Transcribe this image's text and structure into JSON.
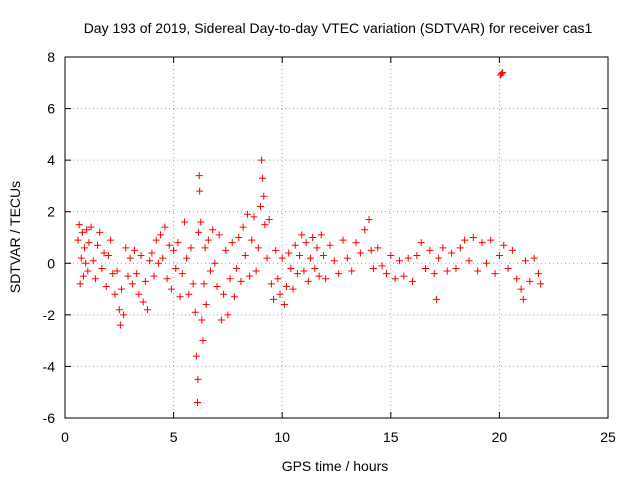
{
  "chart_data": {
    "type": "scatter",
    "title": "Day 193 of 2019, Sidereal Day-to-day VTEC variation (SDTVAR) for receiver cas1",
    "xlabel": "GPS time / hours",
    "ylabel": "SDTVAR / TECUs",
    "xlim": [
      0,
      25
    ],
    "ylim": [
      -6,
      8
    ],
    "xticks": [
      "0",
      "5",
      "10",
      "15",
      "20",
      "25"
    ],
    "yticks": [
      "-6",
      "-4",
      "-2",
      "0",
      "2",
      "4",
      "6",
      "8"
    ],
    "grid": true,
    "marker": "+",
    "series_color": "#ff0000",
    "series": [
      {
        "name": "SDTVAR",
        "points": [
          [
            0.6,
            0.9
          ],
          [
            0.65,
            1.5
          ],
          [
            0.7,
            -0.8
          ],
          [
            0.75,
            0.2
          ],
          [
            0.8,
            1.2
          ],
          [
            0.85,
            -0.5
          ],
          [
            0.9,
            0.6
          ],
          [
            0.95,
            0.0
          ],
          [
            1.0,
            1.3
          ],
          [
            1.05,
            -0.3
          ],
          [
            1.1,
            0.8
          ],
          [
            1.2,
            1.4
          ],
          [
            1.3,
            0.1
          ],
          [
            1.4,
            -0.6
          ],
          [
            1.5,
            0.7
          ],
          [
            1.6,
            1.2
          ],
          [
            1.7,
            -0.2
          ],
          [
            1.8,
            0.4
          ],
          [
            1.9,
            -0.9
          ],
          [
            2.0,
            0.3
          ],
          [
            2.1,
            0.9
          ],
          [
            2.2,
            -0.4
          ],
          [
            2.3,
            -1.2
          ],
          [
            2.4,
            -0.3
          ],
          [
            2.5,
            -1.8
          ],
          [
            2.55,
            -2.4
          ],
          [
            2.6,
            -1.0
          ],
          [
            2.7,
            -2.0
          ],
          [
            2.8,
            0.6
          ],
          [
            2.9,
            -0.5
          ],
          [
            3.0,
            0.2
          ],
          [
            3.1,
            -0.8
          ],
          [
            3.2,
            0.5
          ],
          [
            3.3,
            -0.4
          ],
          [
            3.4,
            -1.2
          ],
          [
            3.5,
            0.3
          ],
          [
            3.6,
            -1.5
          ],
          [
            3.7,
            -0.7
          ],
          [
            3.8,
            -1.8
          ],
          [
            3.9,
            0.1
          ],
          [
            4.0,
            0.4
          ],
          [
            4.1,
            -0.5
          ],
          [
            4.2,
            0.9
          ],
          [
            4.3,
            0.0
          ],
          [
            4.4,
            1.1
          ],
          [
            4.5,
            0.2
          ],
          [
            4.6,
            1.4
          ],
          [
            4.7,
            -0.6
          ],
          [
            4.8,
            0.7
          ],
          [
            4.9,
            -1.0
          ],
          [
            5.0,
            0.5
          ],
          [
            5.1,
            -0.2
          ],
          [
            5.2,
            0.8
          ],
          [
            5.3,
            -1.3
          ],
          [
            5.4,
            -0.4
          ],
          [
            5.5,
            1.6
          ],
          [
            5.6,
            0.2
          ],
          [
            5.7,
            -1.2
          ],
          [
            5.8,
            0.6
          ],
          [
            5.9,
            -0.8
          ],
          [
            6.0,
            -1.9
          ],
          [
            6.05,
            -3.6
          ],
          [
            6.1,
            -5.4
          ],
          [
            6.12,
            -4.5
          ],
          [
            6.15,
            1.2
          ],
          [
            6.18,
            3.4
          ],
          [
            6.2,
            2.8
          ],
          [
            6.25,
            1.6
          ],
          [
            6.3,
            -2.2
          ],
          [
            6.35,
            -3.0
          ],
          [
            6.4,
            -0.8
          ],
          [
            6.45,
            0.6
          ],
          [
            6.5,
            -1.6
          ],
          [
            6.6,
            0.9
          ],
          [
            6.7,
            -0.3
          ],
          [
            6.8,
            1.3
          ],
          [
            6.9,
            0.0
          ],
          [
            7.0,
            -0.9
          ],
          [
            7.1,
            1.1
          ],
          [
            7.2,
            -2.2
          ],
          [
            7.3,
            -1.2
          ],
          [
            7.4,
            0.5
          ],
          [
            7.5,
            -2.0
          ],
          [
            7.6,
            -0.6
          ],
          [
            7.7,
            0.8
          ],
          [
            7.8,
            -1.3
          ],
          [
            7.9,
            -0.2
          ],
          [
            8.0,
            1.0
          ],
          [
            8.1,
            -0.7
          ],
          [
            8.2,
            1.4
          ],
          [
            8.3,
            0.3
          ],
          [
            8.4,
            1.9
          ],
          [
            8.5,
            -0.5
          ],
          [
            8.6,
            0.9
          ],
          [
            8.7,
            1.8
          ],
          [
            8.8,
            -0.3
          ],
          [
            8.9,
            0.6
          ],
          [
            9.0,
            2.2
          ],
          [
            9.05,
            4.0
          ],
          [
            9.1,
            3.3
          ],
          [
            9.15,
            2.6
          ],
          [
            9.2,
            1.5
          ],
          [
            9.3,
            0.2
          ],
          [
            9.4,
            1.7
          ],
          [
            9.5,
            -0.8
          ],
          [
            9.6,
            -1.4
          ],
          [
            9.7,
            0.5
          ],
          [
            9.8,
            -0.6
          ],
          [
            9.9,
            -1.2
          ],
          [
            10.0,
            0.2
          ],
          [
            10.1,
            -1.6
          ],
          [
            10.2,
            -0.9
          ],
          [
            10.3,
            0.4
          ],
          [
            10.4,
            -0.2
          ],
          [
            10.5,
            -1.0
          ],
          [
            10.6,
            0.7
          ],
          [
            10.7,
            -0.4
          ],
          [
            10.8,
            0.3
          ],
          [
            10.9,
            1.1
          ],
          [
            11.0,
            -0.3
          ],
          [
            11.1,
            0.8
          ],
          [
            11.2,
            -0.7
          ],
          [
            11.3,
            0.2
          ],
          [
            11.4,
            1.0
          ],
          [
            11.5,
            -0.2
          ],
          [
            11.6,
            0.6
          ],
          [
            11.7,
            -0.5
          ],
          [
            11.8,
            1.1
          ],
          [
            11.9,
            0.3
          ],
          [
            12.0,
            -0.6
          ],
          [
            12.2,
            0.7
          ],
          [
            12.4,
            0.1
          ],
          [
            12.6,
            -0.4
          ],
          [
            12.8,
            0.9
          ],
          [
            13.0,
            0.2
          ],
          [
            13.2,
            -0.3
          ],
          [
            13.4,
            0.8
          ],
          [
            13.6,
            0.4
          ],
          [
            13.8,
            1.3
          ],
          [
            14.0,
            1.7
          ],
          [
            14.1,
            0.5
          ],
          [
            14.2,
            -0.2
          ],
          [
            14.4,
            0.6
          ],
          [
            14.6,
            -0.1
          ],
          [
            14.8,
            -0.4
          ],
          [
            15.0,
            0.3
          ],
          [
            15.2,
            -0.6
          ],
          [
            15.4,
            0.1
          ],
          [
            15.6,
            -0.5
          ],
          [
            15.8,
            0.2
          ],
          [
            16.0,
            -0.7
          ],
          [
            16.2,
            0.3
          ],
          [
            16.4,
            0.8
          ],
          [
            16.6,
            -0.2
          ],
          [
            16.8,
            0.5
          ],
          [
            17.0,
            -0.4
          ],
          [
            17.1,
            -1.4
          ],
          [
            17.2,
            0.2
          ],
          [
            17.4,
            0.6
          ],
          [
            17.6,
            -0.3
          ],
          [
            17.8,
            0.4
          ],
          [
            18.0,
            -0.2
          ],
          [
            18.2,
            0.6
          ],
          [
            18.4,
            0.9
          ],
          [
            18.6,
            0.1
          ],
          [
            18.8,
            1.0
          ],
          [
            19.0,
            -0.3
          ],
          [
            19.2,
            0.8
          ],
          [
            19.4,
            0.0
          ],
          [
            19.6,
            0.9
          ],
          [
            19.8,
            -0.4
          ],
          [
            20.0,
            0.3
          ],
          [
            20.05,
            7.3
          ],
          [
            20.1,
            7.35
          ],
          [
            20.15,
            7.4
          ],
          [
            20.2,
            0.7
          ],
          [
            20.4,
            -0.2
          ],
          [
            20.6,
            0.5
          ],
          [
            20.8,
            -0.6
          ],
          [
            21.0,
            -1.0
          ],
          [
            21.1,
            -1.4
          ],
          [
            21.2,
            0.1
          ],
          [
            21.4,
            -0.7
          ],
          [
            21.6,
            0.2
          ],
          [
            21.8,
            -0.4
          ],
          [
            21.9,
            -0.8
          ]
        ]
      }
    ]
  }
}
